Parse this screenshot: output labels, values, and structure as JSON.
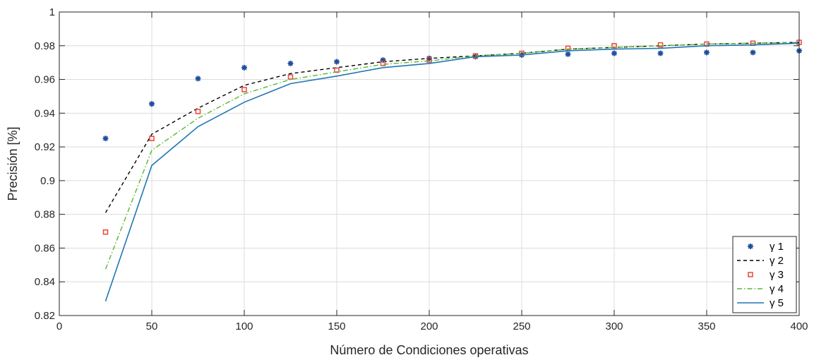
{
  "chart_data": {
    "type": "line",
    "xlabel": "Número de Condiciones operativas",
    "ylabel": "Precisión [%]",
    "xlim": [
      0,
      400
    ],
    "ylim": [
      0.82,
      1
    ],
    "xticks": [
      "0",
      "50",
      "100",
      "150",
      "200",
      "250",
      "300",
      "350",
      "400"
    ],
    "yticks": [
      "0.82",
      "0.84",
      "0.86",
      "0.88",
      "0.9",
      "0.92",
      "0.94",
      "0.96",
      "0.98",
      "1"
    ],
    "grid": true,
    "legend_position": "bottom-right",
    "x": [
      25,
      50,
      75,
      100,
      125,
      150,
      175,
      200,
      225,
      250,
      275,
      300,
      325,
      350,
      375,
      400
    ],
    "series": [
      {
        "name": "γ 1",
        "style": "markers",
        "marker": "asterisk",
        "color": "#1f4e9c",
        "values": [
          0.925,
          0.9455,
          0.9605,
          0.967,
          0.9695,
          0.9705,
          0.9715,
          0.9725,
          0.9735,
          0.9745,
          0.975,
          0.9755,
          0.9755,
          0.976,
          0.976,
          0.977
        ]
      },
      {
        "name": "γ 2",
        "style": "dashed",
        "color": "#000000",
        "values": [
          0.881,
          0.9275,
          0.943,
          0.9565,
          0.9635,
          0.967,
          0.9705,
          0.9725,
          0.974,
          0.9755,
          0.978,
          0.979,
          0.98,
          0.981,
          0.9815,
          0.982
        ]
      },
      {
        "name": "γ 3",
        "style": "markers",
        "marker": "square",
        "color": "#e8473a",
        "values": [
          0.8695,
          0.925,
          0.941,
          0.954,
          0.9615,
          0.9655,
          0.9695,
          0.9715,
          0.974,
          0.9755,
          0.9785,
          0.98,
          0.9805,
          0.981,
          0.9815,
          0.982
        ]
      },
      {
        "name": "γ 4",
        "style": "dashdot",
        "color": "#5bb630",
        "values": [
          0.8475,
          0.918,
          0.937,
          0.9515,
          0.96,
          0.9645,
          0.969,
          0.971,
          0.974,
          0.9755,
          0.978,
          0.979,
          0.98,
          0.981,
          0.9815,
          0.982
        ]
      },
      {
        "name": "γ 5",
        "style": "solid",
        "color": "#1f77b4",
        "values": [
          0.8285,
          0.909,
          0.932,
          0.9465,
          0.9575,
          0.962,
          0.967,
          0.9695,
          0.9735,
          0.9745,
          0.977,
          0.978,
          0.9785,
          0.98,
          0.9805,
          0.9815
        ]
      }
    ]
  }
}
